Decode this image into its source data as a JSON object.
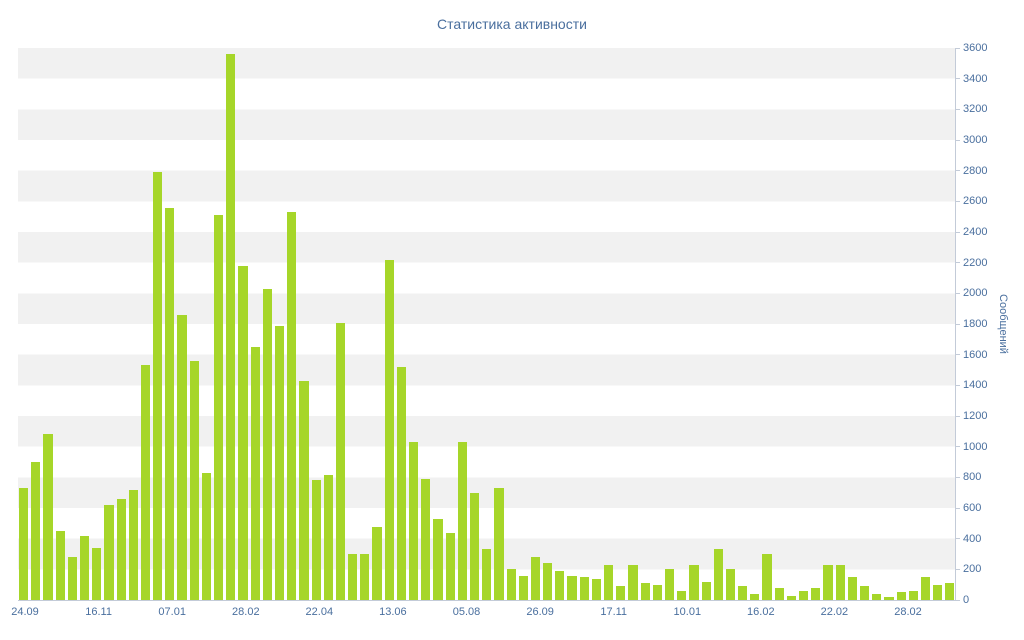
{
  "chart_data": {
    "type": "bar",
    "title": "Статистика активности",
    "xlabel": "",
    "ylabel": "Сообщений",
    "ylim": [
      0,
      3600
    ],
    "ytick_step": 200,
    "yticks": [
      0,
      200,
      400,
      600,
      800,
      1000,
      1200,
      1400,
      1600,
      1800,
      2000,
      2200,
      2400,
      2600,
      2800,
      3000,
      3200,
      3400,
      3600
    ],
    "categories": [
      "24.09",
      "16.11",
      "07.01",
      "28.02",
      "22.04",
      "13.06",
      "05.08",
      "26.09",
      "17.11",
      "10.01",
      "16.02",
      "22.02",
      "28.02"
    ],
    "values": [
      730,
      900,
      1080,
      450,
      280,
      420,
      340,
      620,
      660,
      720,
      1530,
      2790,
      2560,
      1860,
      1560,
      830,
      2510,
      3560,
      2180,
      1650,
      2030,
      1790,
      2530,
      1430,
      780,
      815,
      1810,
      300,
      300,
      475,
      2220,
      1520,
      1030,
      790,
      530,
      440,
      1030,
      700,
      330,
      730,
      200,
      160,
      280,
      240,
      190,
      160,
      150,
      140,
      230,
      90,
      230,
      110,
      100,
      200,
      60,
      230,
      120,
      330,
      200,
      90,
      40,
      300,
      80,
      25,
      60,
      80,
      230,
      230,
      150,
      90,
      40,
      20,
      50,
      60,
      150,
      100,
      110
    ],
    "bar_color": "#a6d629",
    "band_color": "#f1f1f1",
    "text_color": "#4a6f9e",
    "axis_color": "#c3cbd8",
    "grid": "banded-horizontal",
    "legend": "none"
  }
}
